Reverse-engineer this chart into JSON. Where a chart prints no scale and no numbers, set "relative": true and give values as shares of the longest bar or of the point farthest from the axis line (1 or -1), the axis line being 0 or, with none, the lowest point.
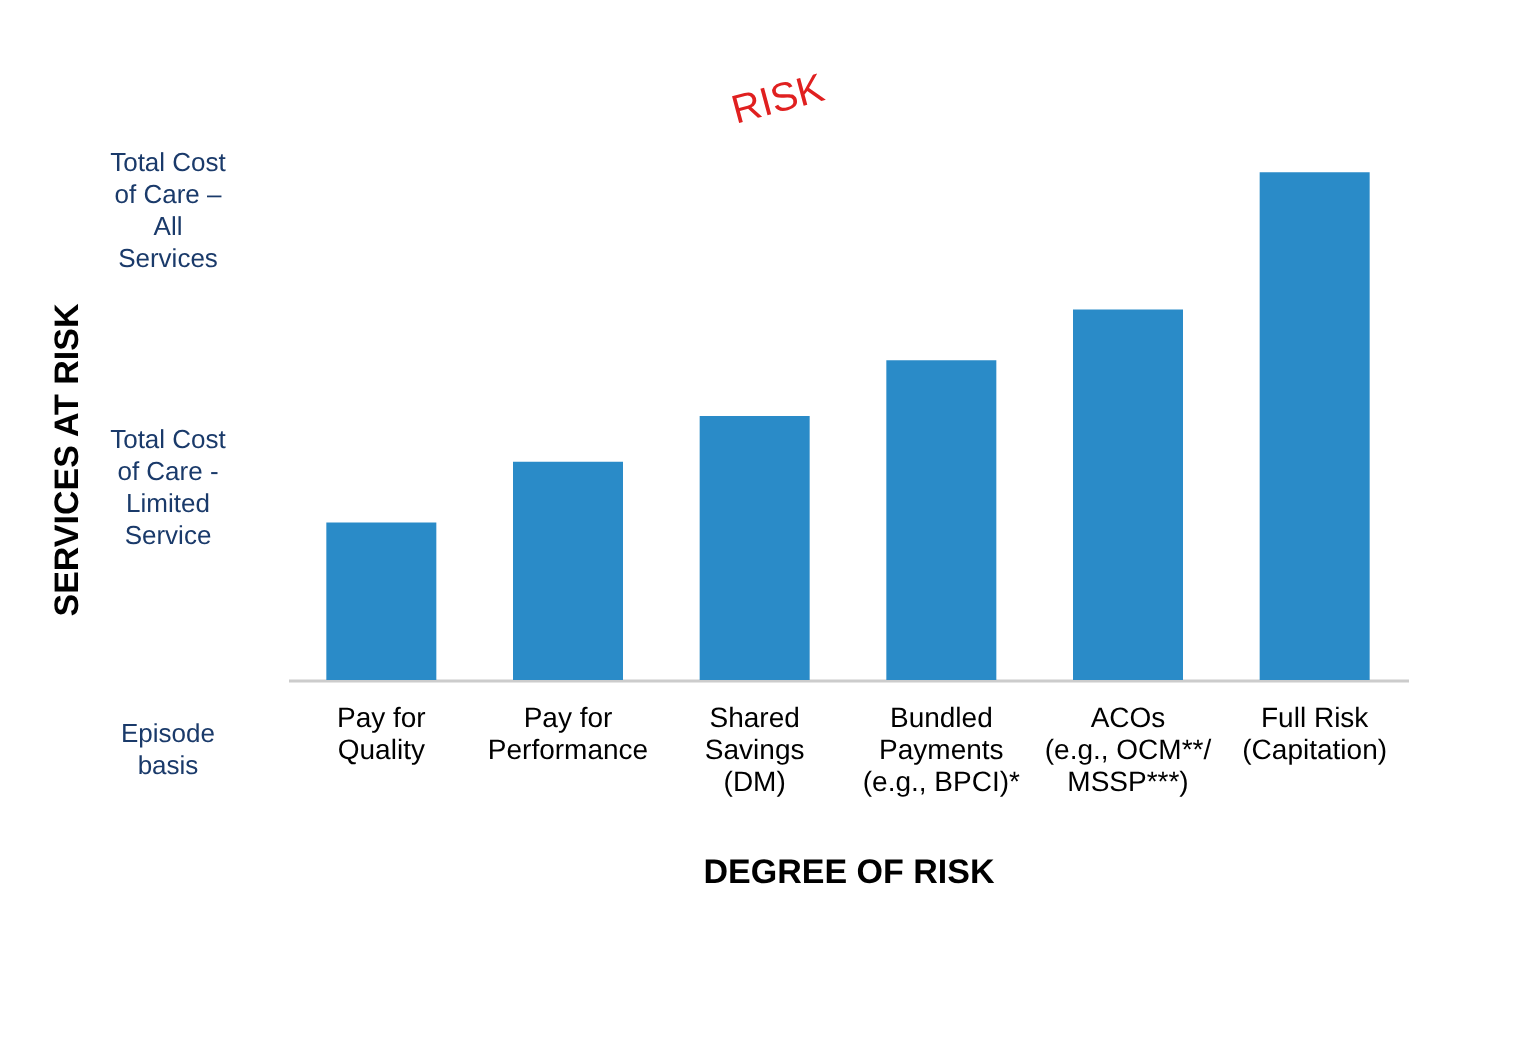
{
  "chart_data": {
    "type": "bar",
    "relative": true,
    "xlabel": "DEGREE OF RISK",
    "categories": [
      "Pay for\nQuality",
      "Pay for\nPerformance",
      "Shared\nSavings\n(DM)",
      "Bundled\nPayments\n(e.g., BPCI)*",
      "ACOs\n(e.g., OCM**/\nMSSP***)",
      "Full Risk\n(Capitation)"
    ],
    "values": [
      0.31,
      0.43,
      0.52,
      0.63,
      0.73,
      1
    ],
    "color": "#2a8bc8",
    "annotations": [
      "Total Cost of Care – All Services",
      "Total Cost of Care - Limited Service",
      "Episode basis",
      "RISK",
      "SERVICES AT RISK"
    ]
  }
}
